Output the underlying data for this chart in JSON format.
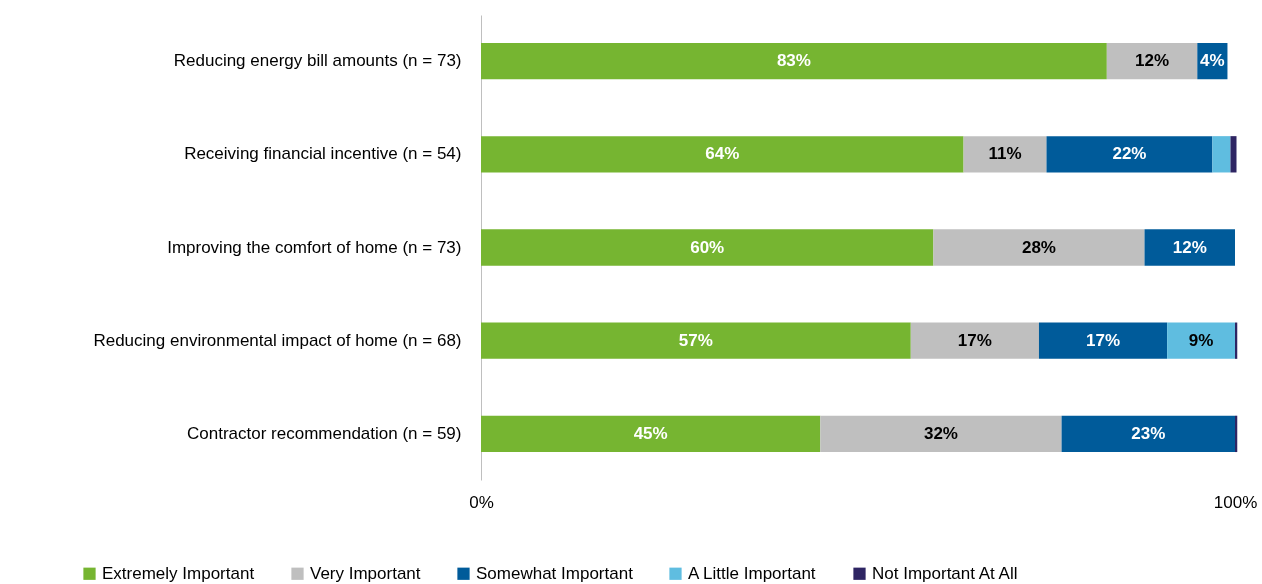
{
  "chart_data": {
    "type": "bar",
    "orientation": "horizontal",
    "stacked": true,
    "categories": [
      "Reducing energy bill amounts (n = 73)",
      "Receiving financial incentive (n = 54)",
      "Improving the comfort of home (n = 73)",
      "Reducing environmental impact of home (n = 68)",
      "Contractor recommendation (n = 59)"
    ],
    "series": [
      {
        "name": "Extremely Important",
        "color": "#76b531",
        "values": [
          83,
          64,
          60,
          57,
          45
        ],
        "value_labels": [
          "83%",
          "64%",
          "60%",
          "57%",
          "45%"
        ]
      },
      {
        "name": "Very Important",
        "color": "#bfbfbf",
        "values": [
          12,
          11,
          28,
          17,
          32
        ],
        "value_labels": [
          "12%",
          "11%",
          "28%",
          "17%",
          "32%"
        ]
      },
      {
        "name": "Somewhat Important",
        "color": "#005b9a",
        "values": [
          4,
          22,
          12,
          17,
          23
        ],
        "value_labels": [
          "4%",
          "22%",
          "12%",
          "17%",
          "23%"
        ]
      },
      {
        "name": "A Little Important",
        "color": "#5fbde0",
        "values": [
          0,
          2.4,
          0,
          9,
          0
        ],
        "value_labels": [
          null,
          null,
          null,
          "9%",
          null
        ]
      },
      {
        "name": "Not Important At All",
        "color": "#2e2563",
        "values": [
          0,
          0.8,
          0,
          0.3,
          0.3
        ],
        "value_labels": [
          null,
          null,
          null,
          null,
          null
        ]
      }
    ],
    "xlim": [
      0,
      100
    ],
    "xticks": [
      {
        "value": 0,
        "label": "0%"
      },
      {
        "value": 100,
        "label": "100%"
      }
    ],
    "grid": false,
    "legend": "bottom"
  }
}
